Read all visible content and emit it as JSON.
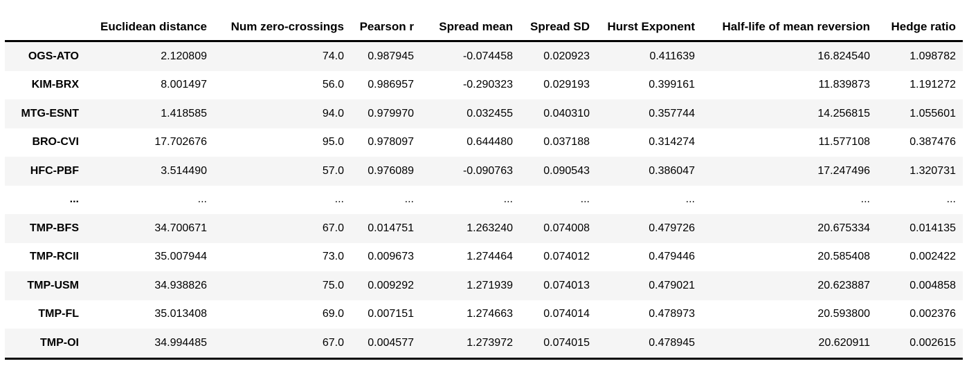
{
  "chart_data": {
    "type": "table",
    "index_header": "",
    "columns": [
      "Euclidean distance",
      "Num zero-crossings",
      "Pearson r",
      "Spread mean",
      "Spread SD",
      "Hurst Exponent",
      "Half-life of mean reversion",
      "Hedge ratio"
    ],
    "rows": [
      {
        "index": "OGS-ATO",
        "values": [
          "2.120809",
          "74.0",
          "0.987945",
          "-0.074458",
          "0.020923",
          "0.411639",
          "16.824540",
          "1.098782"
        ]
      },
      {
        "index": "KIM-BRX",
        "values": [
          "8.001497",
          "56.0",
          "0.986957",
          "-0.290323",
          "0.029193",
          "0.399161",
          "11.839873",
          "1.191272"
        ]
      },
      {
        "index": "MTG-ESNT",
        "values": [
          "1.418585",
          "94.0",
          "0.979970",
          "0.032455",
          "0.040310",
          "0.357744",
          "14.256815",
          "1.055601"
        ]
      },
      {
        "index": "BRO-CVI",
        "values": [
          "17.702676",
          "95.0",
          "0.978097",
          "0.644480",
          "0.037188",
          "0.314274",
          "11.577108",
          "0.387476"
        ]
      },
      {
        "index": "HFC-PBF",
        "values": [
          "3.514490",
          "57.0",
          "0.976089",
          "-0.090763",
          "0.090543",
          "0.386047",
          "17.247496",
          "1.320731"
        ]
      },
      {
        "index": "...",
        "values": [
          "...",
          "...",
          "...",
          "...",
          "...",
          "...",
          "...",
          "..."
        ]
      },
      {
        "index": "TMP-BFS",
        "values": [
          "34.700671",
          "67.0",
          "0.014751",
          "1.263240",
          "0.074008",
          "0.479726",
          "20.675334",
          "0.014135"
        ]
      },
      {
        "index": "TMP-RCII",
        "values": [
          "35.007944",
          "73.0",
          "0.009673",
          "1.274464",
          "0.074012",
          "0.479446",
          "20.585408",
          "0.002422"
        ]
      },
      {
        "index": "TMP-USM",
        "values": [
          "34.938826",
          "75.0",
          "0.009292",
          "1.271939",
          "0.074013",
          "0.479021",
          "20.623887",
          "0.004858"
        ]
      },
      {
        "index": "TMP-FL",
        "values": [
          "35.013408",
          "69.0",
          "0.007151",
          "1.274663",
          "0.074014",
          "0.478973",
          "20.593800",
          "0.002376"
        ]
      },
      {
        "index": "TMP-OI",
        "values": [
          "34.994485",
          "67.0",
          "0.004577",
          "1.273972",
          "0.074015",
          "0.478945",
          "20.620911",
          "0.002615"
        ]
      }
    ],
    "layout": {
      "striping": "odd-rows-gray",
      "stripe_color": "#f5f5f5",
      "rule_color": "#000000",
      "text_color": "#000000",
      "alignment": "right"
    }
  }
}
